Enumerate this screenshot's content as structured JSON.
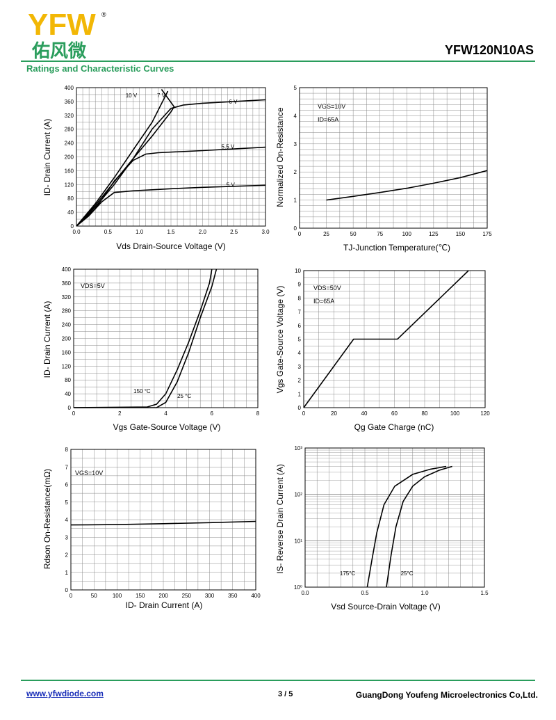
{
  "header": {
    "logo_text": "YFW",
    "logo_chinese": "佑风微",
    "logo_mark": "®",
    "part_number": "YFW120N10AS",
    "section_title": "Ratings and Characteristic Curves",
    "brand_green": "#2a9d5c",
    "logo_yellow": "#f2b705"
  },
  "footer": {
    "url": "www.yfwdiode.com",
    "page": "3 / 5",
    "company": "GuangDong Youfeng Microelectronics Co,Ltd."
  },
  "chart_data": [
    {
      "id": "output",
      "type": "line",
      "xlabel": "Vds Drain-Source Voltage (V)",
      "ylabel": "ID- Drain Current (A)",
      "xlim": [
        0,
        3.0
      ],
      "ylim": [
        0,
        400
      ],
      "xticks": [
        "0.0",
        "0.5",
        "1.0",
        "1.5",
        "2.0",
        "2.5",
        "3.0"
      ],
      "yticks": [
        "0",
        "40",
        "80",
        "120",
        "160",
        "200",
        "240",
        "280",
        "320",
        "360",
        "400"
      ],
      "grid": true,
      "series": [
        {
          "name": "10 V",
          "points": [
            [
              0,
              0
            ],
            [
              0.3,
              65
            ],
            [
              0.6,
              140
            ],
            [
              0.9,
              220
            ],
            [
              1.2,
              300
            ],
            [
              1.45,
              390
            ]
          ]
        },
        {
          "name": "7 V",
          "points": [
            [
              0,
              0
            ],
            [
              0.3,
              60
            ],
            [
              0.6,
              128
            ],
            [
              0.9,
              195
            ],
            [
              1.2,
              260
            ],
            [
              1.5,
              330
            ],
            [
              1.55,
              345
            ],
            [
              1.35,
              395
            ]
          ]
        },
        {
          "name": "6 V",
          "points": [
            [
              0,
              0
            ],
            [
              0.3,
              55
            ],
            [
              0.6,
              120
            ],
            [
              0.9,
              195
            ],
            [
              1.2,
              280
            ],
            [
              1.5,
              340
            ],
            [
              1.7,
              350
            ],
            [
              2.0,
              355
            ],
            [
              2.5,
              360
            ],
            [
              3.0,
              365
            ]
          ]
        },
        {
          "name": "5.5 V",
          "points": [
            [
              0,
              0
            ],
            [
              0.3,
              50
            ],
            [
              0.6,
              130
            ],
            [
              0.9,
              190
            ],
            [
              1.1,
              208
            ],
            [
              1.3,
              212
            ],
            [
              2.0,
              218
            ],
            [
              2.5,
              223
            ],
            [
              3.0,
              228
            ]
          ]
        },
        {
          "name": "5 V",
          "points": [
            [
              0,
              0
            ],
            [
              0.2,
              30
            ],
            [
              0.4,
              70
            ],
            [
              0.6,
              97
            ],
            [
              0.9,
              102
            ],
            [
              1.5,
              108
            ],
            [
              2.0,
              112
            ],
            [
              2.5,
              115
            ],
            [
              3.0,
              118
            ]
          ]
        }
      ]
    },
    {
      "id": "rds-temp",
      "type": "line",
      "xlabel": "TJ-Junction Temperature(℃)",
      "ylabel": "Normalized On-Resistance",
      "xlim": [
        0,
        175
      ],
      "ylim": [
        0,
        5
      ],
      "xticks": [
        "0",
        "25",
        "50",
        "75",
        "100",
        "125",
        "150",
        "175"
      ],
      "yticks": [
        "0",
        "1",
        "2",
        "3",
        "4",
        "5"
      ],
      "grid": true,
      "legend": [
        "VGS=10V",
        "ID=65A"
      ],
      "series": [
        {
          "points": [
            [
              25,
              1.0
            ],
            [
              50,
              1.13
            ],
            [
              75,
              1.27
            ],
            [
              100,
              1.42
            ],
            [
              125,
              1.6
            ],
            [
              150,
              1.8
            ],
            [
              175,
              2.05
            ]
          ]
        }
      ]
    },
    {
      "id": "transfer",
      "type": "line",
      "xlabel": "Vgs Gate-Source Voltage (V)",
      "ylabel": "ID- Drain Current (A)",
      "xlim": [
        0,
        8
      ],
      "ylim": [
        0,
        400
      ],
      "xticks": [
        "0",
        "2",
        "4",
        "6",
        "8"
      ],
      "yticks": [
        "0",
        "40",
        "80",
        "120",
        "160",
        "200",
        "240",
        "280",
        "320",
        "360",
        "400"
      ],
      "grid": true,
      "legend": [
        "VDS=5V"
      ],
      "series": [
        {
          "name": "150 °C",
          "points": [
            [
              0,
              0
            ],
            [
              3.2,
              2
            ],
            [
              3.6,
              10
            ],
            [
              4.0,
              40
            ],
            [
              4.5,
              110
            ],
            [
              5.0,
              190
            ],
            [
              5.5,
              280
            ],
            [
              5.9,
              360
            ],
            [
              6.0,
              400
            ]
          ]
        },
        {
          "name": "25 °C",
          "points": [
            [
              0,
              0
            ],
            [
              3.6,
              0
            ],
            [
              4.0,
              15
            ],
            [
              4.5,
              75
            ],
            [
              5.0,
              160
            ],
            [
              5.5,
              260
            ],
            [
              6.0,
              350
            ],
            [
              6.2,
              400
            ]
          ]
        }
      ]
    },
    {
      "id": "gate-charge",
      "type": "line",
      "xlabel": "Qg Gate Charge (nC)",
      "ylabel": "Vgs Gate-Source Voltage (V)",
      "xlim": [
        0,
        120
      ],
      "ylim": [
        0,
        10
      ],
      "xticks": [
        "0",
        "20",
        "40",
        "60",
        "80",
        "100",
        "120"
      ],
      "yticks": [
        "0",
        "1",
        "2",
        "3",
        "4",
        "5",
        "6",
        "7",
        "8",
        "9",
        "10"
      ],
      "grid": true,
      "legend": [
        "VDS=50V",
        "ID=65A"
      ],
      "series": [
        {
          "points": [
            [
              0,
              0
            ],
            [
              33,
              5
            ],
            [
              62,
              5
            ],
            [
              109,
              10
            ]
          ]
        }
      ]
    },
    {
      "id": "rds-id",
      "type": "line",
      "xlabel": "ID- Drain Current (A)",
      "ylabel": "Rdson On-Resistance(mΩ)",
      "xlim": [
        0,
        400
      ],
      "ylim": [
        0,
        8
      ],
      "xticks": [
        "0",
        "50",
        "100",
        "150",
        "200",
        "250",
        "300",
        "350",
        "400"
      ],
      "yticks": [
        "0",
        "1",
        "2",
        "3",
        "4",
        "5",
        "6",
        "7",
        "8"
      ],
      "grid": true,
      "legend": [
        "VGS=10V"
      ],
      "series": [
        {
          "points": [
            [
              0,
              3.7
            ],
            [
              100,
              3.72
            ],
            [
              200,
              3.77
            ],
            [
              300,
              3.83
            ],
            [
              400,
              3.9
            ]
          ]
        }
      ]
    },
    {
      "id": "diode",
      "type": "line",
      "xlabel": "Vsd Source-Drain Voltage (V)",
      "ylabel": "IS- Reverse Drain Current (A)",
      "xlim": [
        0,
        1.5
      ],
      "ylim": [
        1,
        1000
      ],
      "yscale": "log",
      "xticks": [
        "0.0",
        "0.5",
        "1.0",
        "1.5"
      ],
      "yticks": [
        "10⁰",
        "10¹",
        "10²",
        "10³"
      ],
      "grid": true,
      "series": [
        {
          "name": "175°C",
          "points": [
            [
              0.52,
              1
            ],
            [
              0.56,
              4
            ],
            [
              0.6,
              15
            ],
            [
              0.66,
              60
            ],
            [
              0.75,
              150
            ],
            [
              0.9,
              270
            ],
            [
              1.05,
              350
            ],
            [
              1.18,
              400
            ]
          ]
        },
        {
          "name": "25°C",
          "points": [
            [
              0.68,
              1
            ],
            [
              0.72,
              5
            ],
            [
              0.76,
              20
            ],
            [
              0.82,
              70
            ],
            [
              0.9,
              150
            ],
            [
              1.0,
              240
            ],
            [
              1.12,
              330
            ],
            [
              1.23,
              400
            ]
          ]
        }
      ]
    }
  ]
}
